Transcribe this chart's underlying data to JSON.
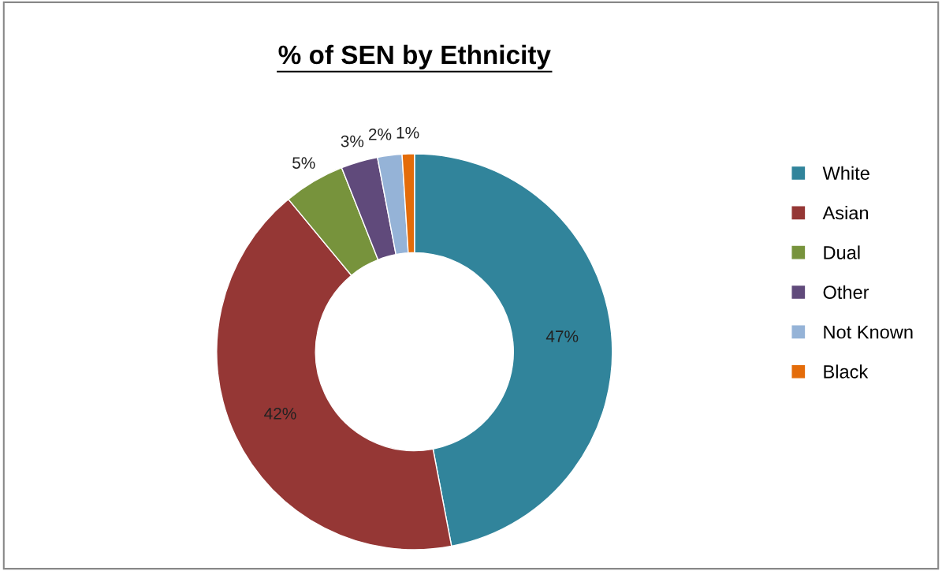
{
  "chart_data": {
    "type": "donut",
    "title": "% of SEN by Ethnicity",
    "categories": [
      "White",
      "Asian",
      "Dual",
      "Other",
      "Not Known",
      "Black"
    ],
    "values": [
      47,
      42,
      5,
      3,
      2,
      1
    ],
    "colors": [
      "#31849b",
      "#953735",
      "#77933c",
      "#604a7b",
      "#95b3d7",
      "#e46c0a"
    ],
    "value_labels": [
      "47%",
      "42%",
      "5%",
      "3%",
      "2%",
      "1%"
    ],
    "legend": "right"
  }
}
